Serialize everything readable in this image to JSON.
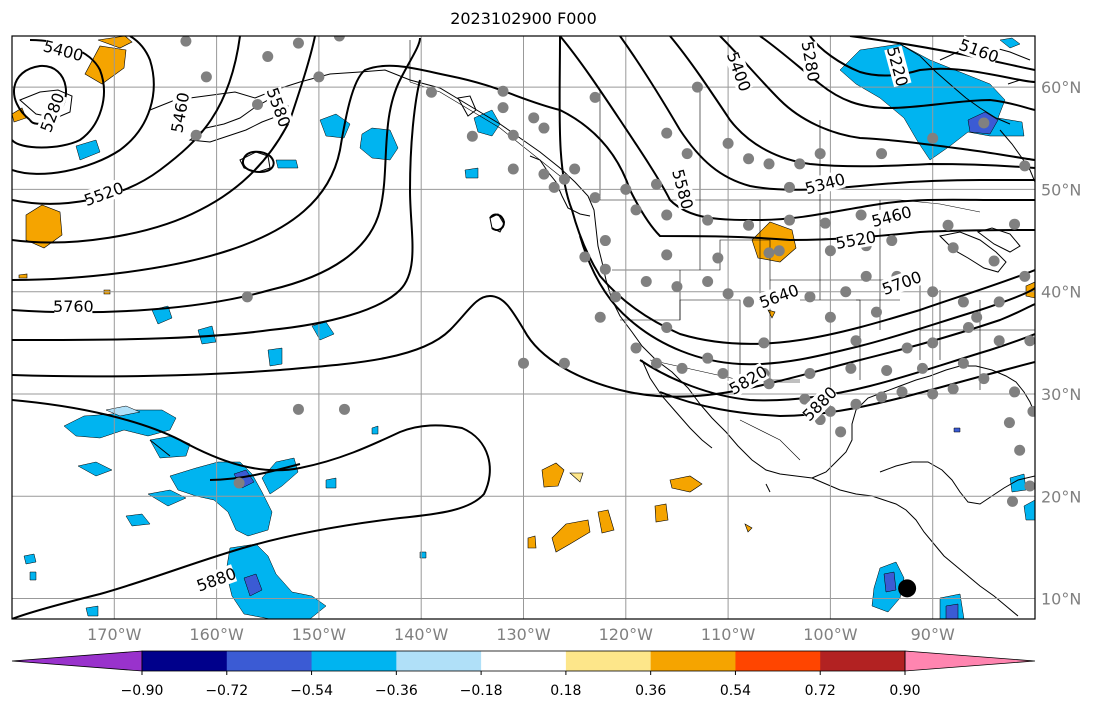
{
  "title": "2023102900 F000",
  "map": {
    "lon_range": [
      -180,
      -80
    ],
    "lat_range": [
      8,
      65
    ],
    "lon_ticks": [
      {
        "value": -170,
        "label": "170°W"
      },
      {
        "value": -160,
        "label": "160°W"
      },
      {
        "value": -150,
        "label": "150°W"
      },
      {
        "value": -140,
        "label": "140°W"
      },
      {
        "value": -130,
        "label": "130°W"
      },
      {
        "value": -120,
        "label": "120°W"
      },
      {
        "value": -110,
        "label": "110°W"
      },
      {
        "value": -100,
        "label": "100°W"
      },
      {
        "value": -90,
        "label": "90°W"
      }
    ],
    "lat_ticks": [
      {
        "value": 60,
        "label": "60°N"
      },
      {
        "value": 50,
        "label": "50°N"
      },
      {
        "value": 40,
        "label": "40°N"
      },
      {
        "value": 30,
        "label": "30°N"
      },
      {
        "value": 20,
        "label": "20°N"
      },
      {
        "value": 10,
        "label": "10°N"
      }
    ],
    "contour_labels": [
      {
        "text": "5400",
        "lon": -175,
        "lat": 63.5,
        "rot": 15
      },
      {
        "text": "5280",
        "lon": -176,
        "lat": 57.5,
        "rot": -70
      },
      {
        "text": "5460",
        "lon": -163.5,
        "lat": 57.5,
        "rot": -80
      },
      {
        "text": "5580",
        "lon": -154,
        "lat": 58,
        "rot": 70
      },
      {
        "text": "5520",
        "lon": -171,
        "lat": 49.5,
        "rot": -20
      },
      {
        "text": "5760",
        "lon": -174,
        "lat": 38.5,
        "rot": 0
      },
      {
        "text": "5880",
        "lon": -160,
        "lat": 11.8,
        "rot": -20
      },
      {
        "text": "5400",
        "lon": -109,
        "lat": 61.5,
        "rot": 70
      },
      {
        "text": "5280",
        "lon": -102,
        "lat": 62.5,
        "rot": 80
      },
      {
        "text": "5220",
        "lon": -93.5,
        "lat": 62,
        "rot": 75
      },
      {
        "text": "5160",
        "lon": -85.5,
        "lat": 63.5,
        "rot": 20
      },
      {
        "text": "5580",
        "lon": -114.5,
        "lat": 50,
        "rot": 75
      },
      {
        "text": "5340",
        "lon": -100.5,
        "lat": 50.5,
        "rot": -15
      },
      {
        "text": "5460",
        "lon": -94,
        "lat": 47.3,
        "rot": -15
      },
      {
        "text": "5520",
        "lon": -97.5,
        "lat": 45,
        "rot": -10
      },
      {
        "text": "5640",
        "lon": -105,
        "lat": 39.5,
        "rot": -20
      },
      {
        "text": "5700",
        "lon": -93,
        "lat": 40.8,
        "rot": -20
      },
      {
        "text": "5820",
        "lon": -108,
        "lat": 31.3,
        "rot": -30
      },
      {
        "text": "5880",
        "lon": -101,
        "lat": 29,
        "rot": -45
      }
    ],
    "stations": [
      {
        "lon": -155,
        "lat": 63
      },
      {
        "lon": -152,
        "lat": 64.3
      },
      {
        "lon": -163,
        "lat": 64.5
      },
      {
        "lon": -161,
        "lat": 61
      },
      {
        "lon": -156,
        "lat": 58.3
      },
      {
        "lon": -150,
        "lat": 61
      },
      {
        "lon": -162,
        "lat": 55.3
      },
      {
        "lon": -148,
        "lat": 65
      },
      {
        "lon": -139,
        "lat": 59.5
      },
      {
        "lon": -131,
        "lat": 55.3
      },
      {
        "lon": -128,
        "lat": 56
      },
      {
        "lon": -132,
        "lat": 59.6
      },
      {
        "lon": -123,
        "lat": 59
      },
      {
        "lon": -113,
        "lat": 60
      },
      {
        "lon": -116,
        "lat": 55.5
      },
      {
        "lon": -114,
        "lat": 53.5
      },
      {
        "lon": -108,
        "lat": 53
      },
      {
        "lon": -110,
        "lat": 54.5
      },
      {
        "lon": -106,
        "lat": 52.5
      },
      {
        "lon": -103,
        "lat": 52.5
      },
      {
        "lon": -101,
        "lat": 53.5
      },
      {
        "lon": -95,
        "lat": 53.5
      },
      {
        "lon": -104,
        "lat": 50.2
      },
      {
        "lon": -117,
        "lat": 50.5
      },
      {
        "lon": -120,
        "lat": 50
      },
      {
        "lon": -123,
        "lat": 49.2
      },
      {
        "lon": -125,
        "lat": 52
      },
      {
        "lon": -126,
        "lat": 51
      },
      {
        "lon": -127,
        "lat": 50.2
      },
      {
        "lon": -128,
        "lat": 51.5
      },
      {
        "lon": -131,
        "lat": 52
      },
      {
        "lon": -119,
        "lat": 48
      },
      {
        "lon": -116,
        "lat": 47.5
      },
      {
        "lon": -112,
        "lat": 47
      },
      {
        "lon": -108,
        "lat": 46.5
      },
      {
        "lon": -104,
        "lat": 47
      },
      {
        "lon": -100.5,
        "lat": 46.7
      },
      {
        "lon": -97,
        "lat": 47.5
      },
      {
        "lon": -94,
        "lat": 45
      },
      {
        "lon": -96.5,
        "lat": 44.5
      },
      {
        "lon": -100,
        "lat": 44
      },
      {
        "lon": -105,
        "lat": 44
      },
      {
        "lon": -111,
        "lat": 43.3
      },
      {
        "lon": -116,
        "lat": 43.6
      },
      {
        "lon": -122,
        "lat": 45
      },
      {
        "lon": -124,
        "lat": 43.4
      },
      {
        "lon": -122,
        "lat": 42.2
      },
      {
        "lon": -118,
        "lat": 41
      },
      {
        "lon": -115,
        "lat": 40.5
      },
      {
        "lon": -112,
        "lat": 41
      },
      {
        "lon": -106,
        "lat": 43.8
      },
      {
        "lon": -110,
        "lat": 39.8
      },
      {
        "lon": -108,
        "lat": 39
      },
      {
        "lon": -102,
        "lat": 39.5
      },
      {
        "lon": -98.5,
        "lat": 40
      },
      {
        "lon": -96.5,
        "lat": 41.5
      },
      {
        "lon": -93.5,
        "lat": 41.5
      },
      {
        "lon": -90,
        "lat": 40
      },
      {
        "lon": -88,
        "lat": 44.3
      },
      {
        "lon": -84,
        "lat": 43
      },
      {
        "lon": -83.5,
        "lat": 39
      },
      {
        "lon": -86.5,
        "lat": 36.5
      },
      {
        "lon": -83.5,
        "lat": 35.2
      },
      {
        "lon": -87,
        "lat": 33
      },
      {
        "lon": -90,
        "lat": 35
      },
      {
        "lon": -92.5,
        "lat": 34.5
      },
      {
        "lon": -95.5,
        "lat": 38
      },
      {
        "lon": -97.5,
        "lat": 35.2
      },
      {
        "lon": -100,
        "lat": 37.5
      },
      {
        "lon": -104.5,
        "lat": 39.5
      },
      {
        "lon": -106.5,
        "lat": 35
      },
      {
        "lon": -112,
        "lat": 33.5
      },
      {
        "lon": -116,
        "lat": 36.5
      },
      {
        "lon": -117,
        "lat": 33
      },
      {
        "lon": -119,
        "lat": 34.5
      },
      {
        "lon": -122.5,
        "lat": 37.5
      },
      {
        "lon": -121,
        "lat": 39.5
      },
      {
        "lon": -114.5,
        "lat": 32.5
      },
      {
        "lon": -110.5,
        "lat": 32
      },
      {
        "lon": -106.5,
        "lat": 32
      },
      {
        "lon": -102,
        "lat": 32
      },
      {
        "lon": -98,
        "lat": 32.5
      },
      {
        "lon": -94.5,
        "lat": 32.3
      },
      {
        "lon": -91,
        "lat": 32.5
      },
      {
        "lon": -88,
        "lat": 30.5
      },
      {
        "lon": -82,
        "lat": 30.2
      },
      {
        "lon": -80.2,
        "lat": 28.3
      },
      {
        "lon": -82.5,
        "lat": 27.2
      },
      {
        "lon": -81.5,
        "lat": 24.5
      },
      {
        "lon": -90,
        "lat": 30
      },
      {
        "lon": -93,
        "lat": 30.2
      },
      {
        "lon": -95,
        "lat": 29.7
      },
      {
        "lon": -97.5,
        "lat": 29
      },
      {
        "lon": -100,
        "lat": 28.3
      },
      {
        "lon": -102.5,
        "lat": 29.5
      },
      {
        "lon": -99,
        "lat": 26.3
      },
      {
        "lon": -101,
        "lat": 27.5
      },
      {
        "lon": -106,
        "lat": 31
      },
      {
        "lon": -109,
        "lat": 30.5
      },
      {
        "lon": -126,
        "lat": 33
      },
      {
        "lon": -130,
        "lat": 33
      },
      {
        "lon": -157,
        "lat": 39.5
      },
      {
        "lon": -152,
        "lat": 28.5
      },
      {
        "lon": -147.5,
        "lat": 28.5
      },
      {
        "lon": -132,
        "lat": 58
      },
      {
        "lon": -129,
        "lat": 57
      },
      {
        "lon": -135,
        "lat": 55.2
      },
      {
        "lon": -90,
        "lat": 55
      },
      {
        "lon": -85,
        "lat": 56.5
      },
      {
        "lon": -81,
        "lat": 52.3
      },
      {
        "lon": -82,
        "lat": 46.6
      },
      {
        "lon": -88.5,
        "lat": 46.5
      },
      {
        "lon": -80.5,
        "lat": 35.2
      },
      {
        "lon": -85,
        "lat": 31.5
      },
      {
        "lon": -82.2,
        "lat": 19.5
      },
      {
        "lon": -80.5,
        "lat": 21
      },
      {
        "lon": -157.8,
        "lat": 21.3
      },
      {
        "lon": -87,
        "lat": 39
      },
      {
        "lon": -81,
        "lat": 41.5
      },
      {
        "lon": -85.7,
        "lat": 37.5
      },
      {
        "lon": -79.5,
        "lat": 38
      }
    ],
    "black_dot": {
      "lon": -92.5,
      "lat": 11
    }
  },
  "colorbar": {
    "levels": [
      "−0.90",
      "−0.72",
      "−0.54",
      "−0.36",
      "−0.18",
      "0.18",
      "0.36",
      "0.54",
      "0.72",
      "0.90"
    ],
    "colors": [
      "#9932cc",
      "#00008b",
      "#3b5bd4",
      "#00b4f0",
      "#b0e0f8",
      "#ffffff",
      "#fde68a",
      "#f5a400",
      "#ff4500",
      "#b22222",
      "#ff85b0"
    ]
  }
}
